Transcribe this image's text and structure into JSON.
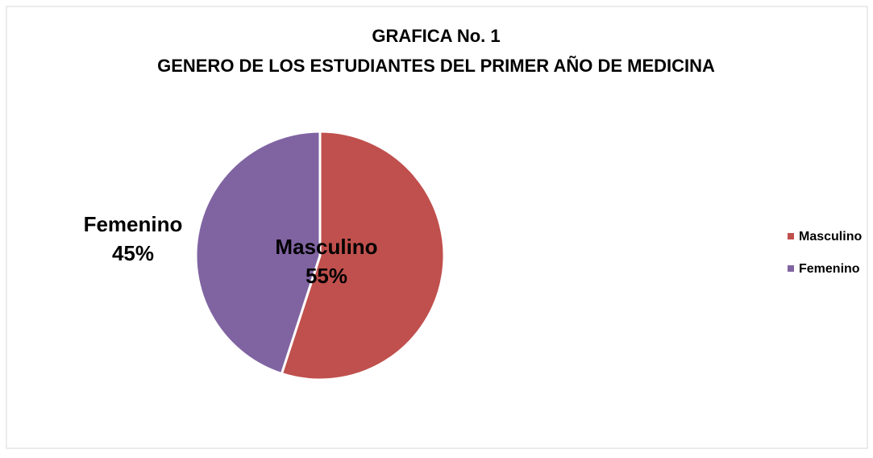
{
  "chart_data": {
    "type": "pie",
    "title": "GRAFICA No. 1",
    "subtitle": "GENERO DE LOS ESTUDIANTES DEL PRIMER AÑO DE MEDICINA",
    "categories": [
      "Masculino",
      "Femenino"
    ],
    "values": [
      55,
      45
    ],
    "value_labels": [
      "55%",
      "45%"
    ],
    "colors": [
      "#c0504d",
      "#8064a2"
    ],
    "legend": "right"
  }
}
